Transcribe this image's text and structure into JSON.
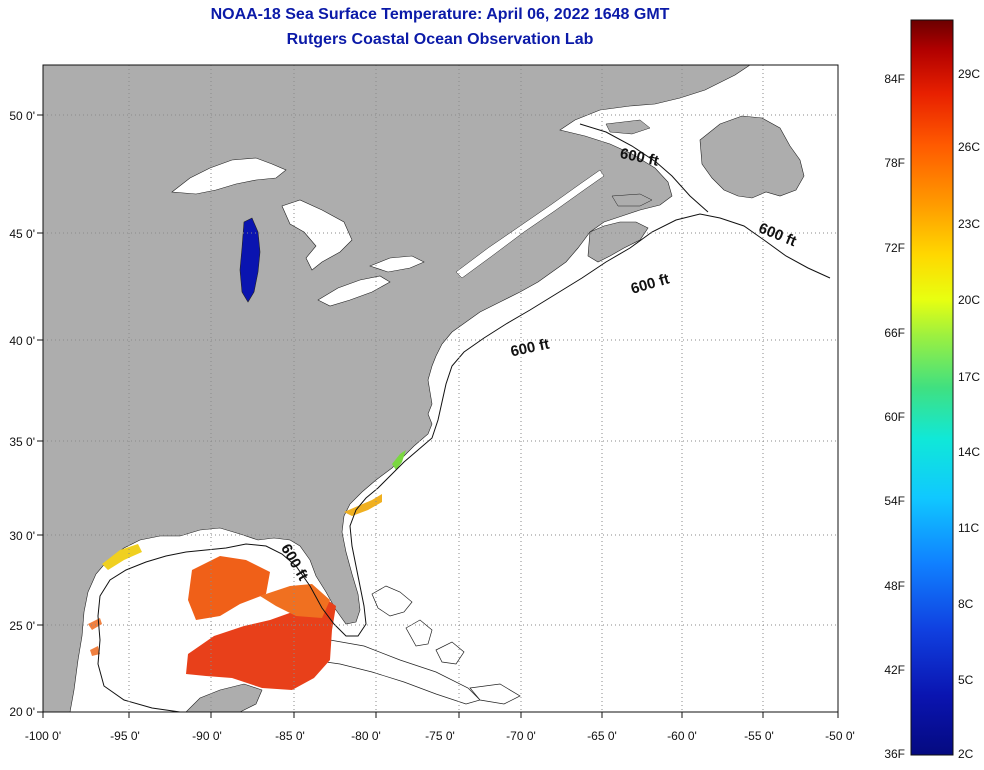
{
  "header": {
    "title": "NOAA-18 Sea Surface Temperature:  April 06, 2022 1648 GMT",
    "subtitle": "Rutgers Coastal Ocean Observation Lab"
  },
  "axes": {
    "longitude_ticks": [
      "-100 0'",
      "-95 0'",
      "-90 0'",
      "-85 0'",
      "-80 0'",
      "-75 0'",
      "-70 0'",
      "-65 0'",
      "-60 0'",
      "-55 0'",
      "-50 0'"
    ],
    "latitude_ticks": [
      "50 0'",
      "45 0'",
      "40 0'",
      "35 0'",
      "30 0'",
      "25 0'",
      "20 0'"
    ]
  },
  "contour": {
    "label": "600 ft"
  },
  "colorbar": {
    "fahrenheit_labels": [
      "84F",
      "78F",
      "72F",
      "66F",
      "60F",
      "54F",
      "48F",
      "42F",
      "36F"
    ],
    "celsius_labels": [
      "29C",
      "26C",
      "23C",
      "20C",
      "17C",
      "14C",
      "11C",
      "8C",
      "5C",
      "2C"
    ],
    "colors": [
      "#6b0000",
      "#b00000",
      "#e82000",
      "#ff5a00",
      "#ff9a00",
      "#ffd800",
      "#e8ff10",
      "#9cf040",
      "#40e080",
      "#10e8d8",
      "#10c8ff",
      "#1080ff",
      "#1040e0",
      "#0a14b0",
      "#050a80"
    ]
  },
  "colors": {
    "land": "#adadad",
    "sea": "#ffffff",
    "grid": "#8a8a8a",
    "title": "#0b1aa8"
  }
}
